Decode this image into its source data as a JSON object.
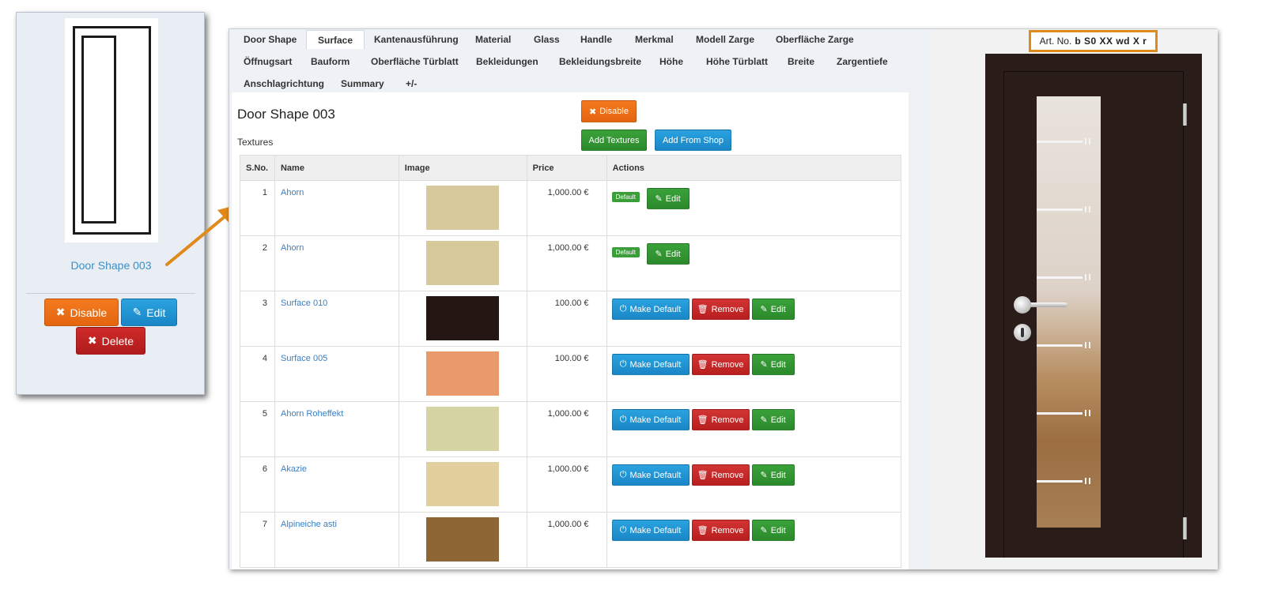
{
  "left_card": {
    "title": "Door Shape 003",
    "disable_label": "Disable",
    "edit_label": "Edit",
    "delete_label": "Delete"
  },
  "tabs": [
    "Door Shape",
    "Surface",
    "Kantenausführung",
    "Material",
    "Glass",
    "Handle",
    "Merkmal",
    "Modell Zarge",
    "Oberfläche Zarge",
    "Öffnugsart",
    "Bauform",
    "Oberfläche Türblatt",
    "Bekleidungen",
    "Bekleidungsbreite",
    "Höhe",
    "Höhe Türblatt",
    "Breite",
    "Zargentiefe",
    "Anschlagrichtung",
    "Summary",
    "+/-"
  ],
  "active_tab": "Surface",
  "main": {
    "title": "Door Shape 003",
    "textures_label": "Textures",
    "disable_label": "Disable",
    "add_textures_label": "Add Textures",
    "add_from_shop_label": "Add From Shop"
  },
  "table": {
    "headers": {
      "sno": "S.No.",
      "name": "Name",
      "image": "Image",
      "price": "Price",
      "actions": "Actions"
    },
    "rows": [
      {
        "sno": "1",
        "name": "Ahorn",
        "price": "1,000.00 €",
        "is_default": true,
        "swatch_color": "#d8c99c"
      },
      {
        "sno": "2",
        "name": "Ahorn",
        "price": "1,000.00 €",
        "is_default": true,
        "swatch_color": "#d8c99c"
      },
      {
        "sno": "3",
        "name": "Surface 010",
        "price": "100.00 €",
        "is_default": false,
        "swatch_color": "#231613"
      },
      {
        "sno": "4",
        "name": "Surface 005",
        "price": "100.00 €",
        "is_default": false,
        "swatch_color": "#e99a6c"
      },
      {
        "sno": "5",
        "name": "Ahorn Roheffekt",
        "price": "1,000.00 €",
        "is_default": false,
        "swatch_color": "#d6d3a4"
      },
      {
        "sno": "6",
        "name": "Akazie",
        "price": "1,000.00 €",
        "is_default": false,
        "swatch_color": "#e2cf9e"
      },
      {
        "sno": "7",
        "name": "Alpineiche asti",
        "price": "1,000.00 €",
        "is_default": false,
        "swatch_color": "#8e6535"
      }
    ],
    "default_badge": "Default",
    "make_default_label": "Make Default",
    "remove_label": "Remove",
    "edit_label": "Edit"
  },
  "preview": {
    "art_no_label": "Art. No.",
    "art_no_value": "b S0 XX wd X r"
  }
}
